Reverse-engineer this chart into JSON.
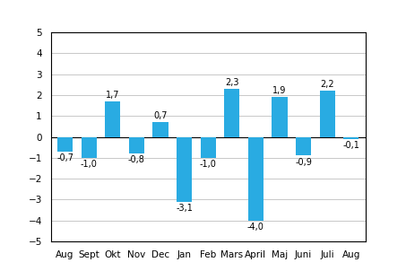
{
  "categories": [
    "Aug",
    "Sept",
    "Okt",
    "Nov",
    "Dec",
    "Jan",
    "Feb",
    "Mars",
    "April",
    "Maj",
    "Juni",
    "Juli",
    "Aug"
  ],
  "values": [
    -0.7,
    -1.0,
    1.7,
    -0.8,
    0.7,
    -3.1,
    -1.0,
    2.3,
    -4.0,
    1.9,
    -0.9,
    2.2,
    -0.1
  ],
  "bar_color": "#29abe2",
  "ylim": [
    -5,
    5
  ],
  "yticks": [
    -5,
    -4,
    -3,
    -2,
    -1,
    0,
    1,
    2,
    3,
    4,
    5
  ],
  "background_color": "#ffffff",
  "grid_color": "#c8c8c8",
  "label_fontsize": 7.0,
  "tick_fontsize": 7.5,
  "year_fontsize": 8.0,
  "bar_width": 0.65
}
